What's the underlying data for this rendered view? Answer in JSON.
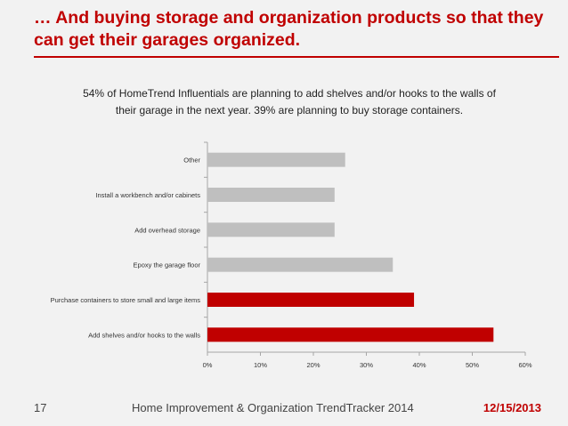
{
  "slide": {
    "title": "… And buying storage and organization products so that they can get their garages organized.",
    "page_number": "17",
    "footer_text": "Home Improvement & Organization TrendTracker 2014",
    "date": "12/15/2013"
  },
  "colors": {
    "accent": "#c00000",
    "bar_gray": "#bfbfbf",
    "bar_red": "#c00000"
  },
  "chart_data": {
    "type": "bar",
    "orientation": "horizontal",
    "title": "54% of HomeTrend Influentials are planning to add shelves and/or hooks to the walls of their garage in the next year.  39% are planning to buy storage containers.",
    "categories": [
      "Other",
      "Install a workbench and/or cabinets",
      "Add overhead storage",
      "Epoxy the garage floor",
      "Purchase containers to store small and large items",
      "Add shelves and/or hooks to the walls"
    ],
    "values": [
      26,
      24,
      24,
      35,
      39,
      54
    ],
    "highlight": [
      false,
      false,
      false,
      false,
      true,
      true
    ],
    "xlim": [
      0,
      60
    ],
    "xticks": [
      "0%",
      "10%",
      "20%",
      "30%",
      "40%",
      "50%",
      "60%"
    ],
    "grid": false,
    "legend": "none"
  }
}
